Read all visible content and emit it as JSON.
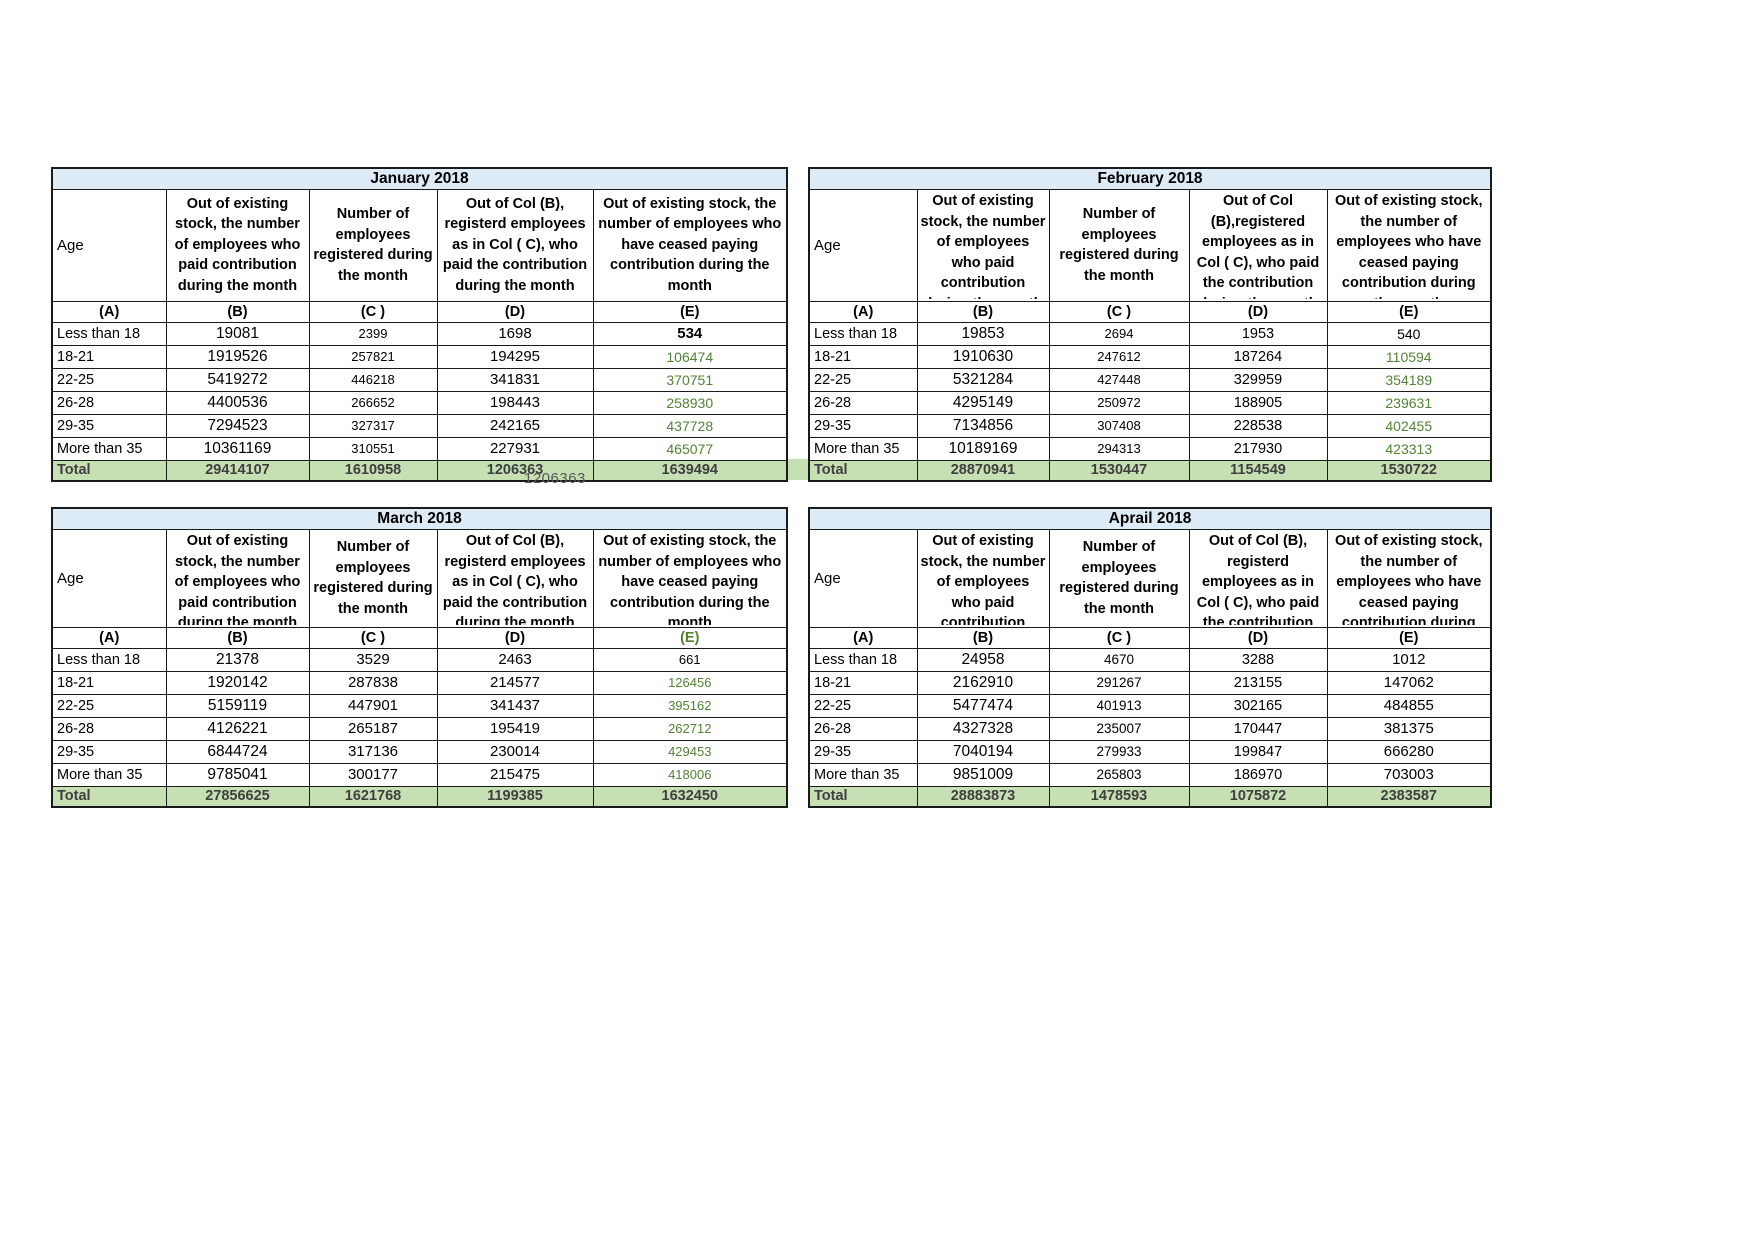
{
  "page": {
    "background": "#ffffff"
  },
  "colors": {
    "title_bg": "#DDEBF7",
    "total_bg": "#C6E0B4",
    "green_text": "#538135",
    "border": "#1a1a1a"
  },
  "artifacts": {
    "spill_text": "1206363"
  },
  "tables": [
    {
      "key": "january",
      "title": "January 2018",
      "headers": [
        "Age",
        "Out of existing stock, the number of employees who paid contribution during the month",
        "Number of employees registered during the month",
        "Out of Col (B), registerd employees as in Col ( C), who paid the contribution during the month",
        "Out of existing stock, the number of  employees  who have ceased paying contribution during the month"
      ],
      "letters": [
        "(A)",
        "(B)",
        "(C )",
        "(D)",
        "(E)"
      ],
      "letter_styles": [
        null,
        null,
        null,
        null,
        null
      ],
      "rows": [
        {
          "label": "Less than 18",
          "values": [
            "19081",
            "2399",
            "1698",
            "534"
          ],
          "styles": [
            null,
            null,
            null,
            "bold"
          ]
        },
        {
          "label": "18-21",
          "values": [
            "1919526",
            "257821",
            "194295",
            "106474"
          ],
          "styles": [
            null,
            null,
            null,
            "green"
          ]
        },
        {
          "label": "22-25",
          "values": [
            "5419272",
            "446218",
            "341831",
            "370751"
          ],
          "styles": [
            null,
            null,
            null,
            "green"
          ]
        },
        {
          "label": "26-28",
          "values": [
            "4400536",
            "266652",
            "198443",
            "258930"
          ],
          "styles": [
            null,
            null,
            null,
            "green"
          ]
        },
        {
          "label": "29-35",
          "values": [
            "7294523",
            "327317",
            "242165",
            "437728"
          ],
          "styles": [
            null,
            null,
            null,
            "green"
          ]
        },
        {
          "label": "More than 35",
          "values": [
            "10361169",
            "310551",
            "227931",
            "465077"
          ],
          "styles": [
            null,
            null,
            null,
            "green"
          ]
        }
      ],
      "total": {
        "label": "Total",
        "values": [
          "29414107",
          "1610958",
          "1206363",
          "1639494"
        ],
        "styles": [
          null,
          null,
          null,
          null
        ]
      }
    },
    {
      "key": "february",
      "title": "February 2018",
      "headers": [
        "Age",
        "Out of existing stock, the number of employees who paid contribution during the month",
        "Number of employees registered during the month",
        "Out of Col (B),registered employees as in Col ( C), who paid the contribution during the month",
        "Out of existing stock, the number of employees  who have ceased paying contribution during the month"
      ],
      "letters": [
        "(A)",
        "(B)",
        "(C )",
        "(D)",
        "(E)"
      ],
      "letter_styles": [
        null,
        null,
        null,
        null,
        null
      ],
      "rows": [
        {
          "label": "Less than 18",
          "values": [
            "19853",
            "2694",
            "1953",
            "540"
          ],
          "styles": [
            null,
            null,
            null,
            null
          ]
        },
        {
          "label": "18-21",
          "values": [
            "1910630",
            "247612",
            "187264",
            "110594"
          ],
          "styles": [
            null,
            null,
            null,
            "green"
          ]
        },
        {
          "label": "22-25",
          "values": [
            "5321284",
            "427448",
            "329959",
            "354189"
          ],
          "styles": [
            null,
            null,
            null,
            "green"
          ]
        },
        {
          "label": "26-28",
          "values": [
            "4295149",
            "250972",
            "188905",
            "239631"
          ],
          "styles": [
            null,
            null,
            null,
            "green"
          ]
        },
        {
          "label": "29-35",
          "values": [
            "7134856",
            "307408",
            "228538",
            "402455"
          ],
          "styles": [
            null,
            null,
            null,
            "green"
          ]
        },
        {
          "label": "More than 35",
          "values": [
            "10189169",
            "294313",
            "217930",
            "423313"
          ],
          "styles": [
            null,
            null,
            null,
            "green"
          ]
        }
      ],
      "total": {
        "label": "Total",
        "values": [
          "28870941",
          "1530447",
          "1154549",
          "1530722"
        ],
        "styles": [
          null,
          null,
          null,
          null
        ]
      }
    },
    {
      "key": "march",
      "title": "March 2018",
      "headers": [
        "Age",
        "Out of existing stock, the number of employees who paid contribution during the month",
        "Number of employees registered during the month",
        "Out of Col (B), registerd employees as in Col ( C), who paid the contribution during the month",
        "Out of existing stock, the number of  employees  who have ceased paying contribution during the month"
      ],
      "letters": [
        "(A)",
        "(B)",
        "(C )",
        "(D)",
        "(E)"
      ],
      "letter_styles": [
        null,
        null,
        null,
        null,
        "green"
      ],
      "rows": [
        {
          "label": "Less than 18",
          "values": [
            "21378",
            "3529",
            "2463",
            "661"
          ],
          "styles": [
            null,
            null,
            null,
            null
          ]
        },
        {
          "label": "18-21",
          "values": [
            "1920142",
            "287838",
            "214577",
            "126456"
          ],
          "styles": [
            null,
            null,
            null,
            "green"
          ]
        },
        {
          "label": "22-25",
          "values": [
            "5159119",
            "447901",
            "341437",
            "395162"
          ],
          "styles": [
            null,
            null,
            null,
            "green"
          ]
        },
        {
          "label": "26-28",
          "values": [
            "4126221",
            "265187",
            "195419",
            "262712"
          ],
          "styles": [
            null,
            null,
            null,
            "green"
          ]
        },
        {
          "label": "29-35",
          "values": [
            "6844724",
            "317136",
            "230014",
            "429453"
          ],
          "styles": [
            null,
            null,
            null,
            "green"
          ]
        },
        {
          "label": "More than 35",
          "values": [
            "9785041",
            "300177",
            "215475",
            "418006"
          ],
          "styles": [
            null,
            null,
            null,
            "green"
          ]
        }
      ],
      "total": {
        "label": "Total",
        "values": [
          "27856625",
          "1621768",
          "1199385",
          "1632450"
        ],
        "styles": [
          null,
          null,
          null,
          null
        ]
      }
    },
    {
      "key": "aprail",
      "title": "Aprail 2018",
      "headers": [
        "Age",
        "Out of existing stock, the number of employees who paid contribution during the month",
        "Number of employees registered during the month",
        "Out of Col (B), registerd employees as in Col ( C), who paid the contribution during the month",
        "Out of existing stock, the number of employees  who have ceased paying contribution during the month"
      ],
      "letters": [
        "(A)",
        "(B)",
        "(C )",
        "(D)",
        "(E)"
      ],
      "letter_styles": [
        null,
        null,
        null,
        null,
        null
      ],
      "rows": [
        {
          "label": "Less than 18",
          "values": [
            "24958",
            "4670",
            "3288",
            "1012"
          ],
          "styles": [
            null,
            null,
            null,
            null
          ]
        },
        {
          "label": "18-21",
          "values": [
            "2162910",
            "291267",
            "213155",
            "147062"
          ],
          "styles": [
            null,
            null,
            null,
            null
          ]
        },
        {
          "label": "22-25",
          "values": [
            "5477474",
            "401913",
            "302165",
            "484855"
          ],
          "styles": [
            null,
            null,
            null,
            null
          ]
        },
        {
          "label": "26-28",
          "values": [
            "4327328",
            "235007",
            "170447",
            "381375"
          ],
          "styles": [
            null,
            null,
            null,
            null
          ]
        },
        {
          "label": "29-35",
          "values": [
            "7040194",
            "279933",
            "199847",
            "666280"
          ],
          "styles": [
            null,
            null,
            null,
            null
          ]
        },
        {
          "label": "More than 35",
          "values": [
            "9851009",
            "265803",
            "186970",
            "703003"
          ],
          "styles": [
            null,
            null,
            null,
            null
          ]
        }
      ],
      "total": {
        "label": "Total",
        "values": [
          "28883873",
          "1478593",
          "1075872",
          "2383587"
        ],
        "styles": [
          "green",
          "green",
          "green",
          null
        ]
      }
    }
  ]
}
